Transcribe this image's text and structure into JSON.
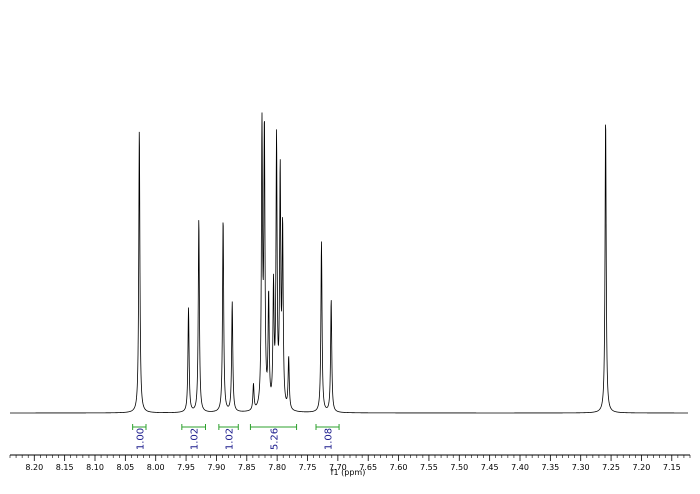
{
  "chart_data": {
    "type": "line",
    "title": "",
    "xlabel": "f1 (ppm)",
    "ylabel": "",
    "xlim": [
      8.24,
      7.12
    ],
    "x_reversed": true,
    "x_ticks": [
      8.2,
      8.15,
      8.1,
      8.05,
      8.0,
      7.95,
      7.9,
      7.85,
      7.8,
      7.75,
      7.7,
      7.65,
      7.6,
      7.55,
      7.5,
      7.45,
      7.4,
      7.35,
      7.3,
      7.25,
      7.2,
      7.15
    ],
    "x_tick_labels": [
      "8.20",
      "8.15",
      "8.10",
      "8.05",
      "8.00",
      "7.95",
      "7.90",
      "7.85",
      "7.80",
      "7.75",
      "7.70",
      "7.65",
      "7.60",
      "7.55",
      "7.50",
      "7.45",
      "7.40",
      "7.35",
      "7.30",
      "7.25",
      "7.20",
      "7.15"
    ],
    "peaks": [
      {
        "ppm": 8.027,
        "intensity": 0.98
      },
      {
        "ppm": 7.946,
        "intensity": 0.36
      },
      {
        "ppm": 7.929,
        "intensity": 0.67
      },
      {
        "ppm": 7.889,
        "intensity": 0.67
      },
      {
        "ppm": 7.874,
        "intensity": 0.38
      },
      {
        "ppm": 7.839,
        "intensity": 0.09
      },
      {
        "ppm": 7.825,
        "intensity": 0.96
      },
      {
        "ppm": 7.821,
        "intensity": 0.95
      },
      {
        "ppm": 7.814,
        "intensity": 0.38
      },
      {
        "ppm": 7.806,
        "intensity": 0.41
      },
      {
        "ppm": 7.801,
        "intensity": 0.92
      },
      {
        "ppm": 7.795,
        "intensity": 0.8
      },
      {
        "ppm": 7.791,
        "intensity": 0.61
      },
      {
        "ppm": 7.781,
        "intensity": 0.18
      },
      {
        "ppm": 7.727,
        "intensity": 0.59
      },
      {
        "ppm": 7.711,
        "intensity": 0.39
      },
      {
        "ppm": 7.259,
        "intensity": 1.02
      }
    ],
    "integrals": [
      {
        "from": 8.038,
        "to": 8.016,
        "label": "1.00"
      },
      {
        "from": 7.957,
        "to": 7.918,
        "label": "1.02"
      },
      {
        "from": 7.896,
        "to": 7.864,
        "label": "1.02"
      },
      {
        "from": 7.844,
        "to": 7.768,
        "label": "5.26"
      },
      {
        "from": 7.736,
        "to": 7.698,
        "label": "1.08"
      }
    ],
    "colors": {
      "spectrum": "#000000",
      "integral": "#2ca02c",
      "integral_label": "#1a1a8c"
    }
  }
}
